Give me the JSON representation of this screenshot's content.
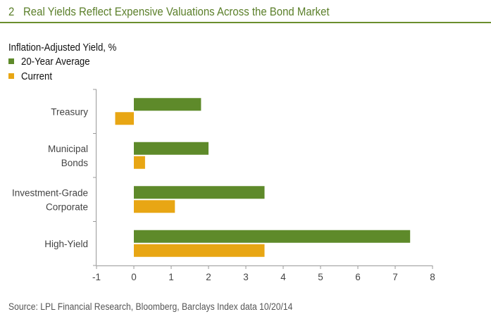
{
  "figure": {
    "number": "2",
    "title": "Real Yields Reflect Expensive Valuations Across the Bond Market",
    "source": "Source: LPL Financial Research, Bloomberg, Barclays Index data   10/20/14"
  },
  "colors": {
    "accent": "#5b7f2a",
    "series_avg": "#5e8a2a",
    "series_current": "#e8a614"
  },
  "chart_data": {
    "type": "bar",
    "orientation": "horizontal",
    "ylabel": "Inflation-Adjusted Yield, %",
    "categories": [
      [
        "Treasury"
      ],
      [
        "Municipal",
        "Bonds"
      ],
      [
        "Investment-Grade",
        "Corporate"
      ],
      [
        "High-Yield"
      ]
    ],
    "series": [
      {
        "name": "20-Year Average",
        "color": "#5e8a2a",
        "values": [
          1.8,
          2.0,
          3.5,
          7.4
        ]
      },
      {
        "name": "Current",
        "color": "#e8a614",
        "values": [
          -0.5,
          0.3,
          1.1,
          3.5
        ]
      }
    ],
    "xlim": [
      -1,
      8
    ],
    "xticks": [
      "-1",
      "0",
      "1",
      "2",
      "3",
      "4",
      "5",
      "6",
      "7",
      "8"
    ],
    "grid": false,
    "legend_position": "top-left"
  }
}
